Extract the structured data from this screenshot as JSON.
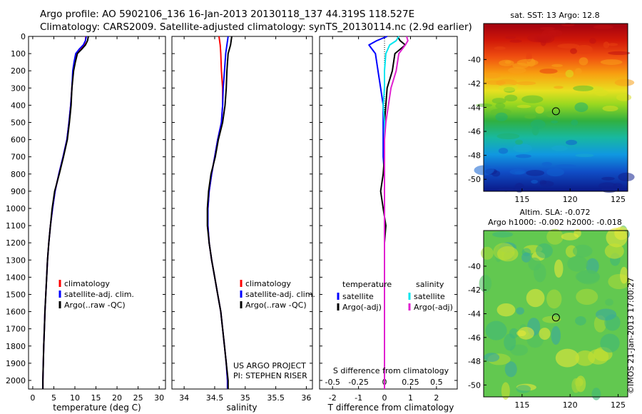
{
  "header": {
    "line1": "Argo profile: AO 5902106_136 16-Jan-2013 20130118_137 44.319S 118.527E",
    "line2": "Climatology: CARS2009. Satellite-adjusted climatology: synTS_20130114.nc (2.9d earlier)"
  },
  "map_panels": {
    "sst_title": "sat. SST: 13 Argo: 12.8",
    "sla_title_line1": "Altim. SLA: -0.072",
    "sla_title_line2": "Argo h1000: -0.002 h2000: -0.018",
    "lat_ticks": [
      "-40",
      "-42",
      "-44",
      "-46",
      "-48",
      "-50"
    ],
    "lon_ticks": [
      "115",
      "120",
      "125"
    ],
    "lat_range": [
      -51,
      -37
    ],
    "lon_range": [
      111,
      126
    ],
    "float_position": {
      "lon": 118.527,
      "lat": -44.319
    }
  },
  "stamp": "©IMOS 21-Jan-2013 17:00:27",
  "credit": {
    "line1": "US ARGO PROJECT",
    "line2": "PI: STEPHEN RISER"
  },
  "colors": {
    "climatology": "#ff0000",
    "satellite": "#0000ff",
    "argo": "#000000",
    "satellite_salinity": "#00e5ee",
    "argo_salinity": "#e020d0"
  },
  "chart_data": [
    {
      "type": "line",
      "name": "temperature",
      "xlabel": "temperature (deg C)",
      "ylim": [
        2050,
        0
      ],
      "xlim": [
        -1,
        31.5
      ],
      "xticks": [
        0,
        5,
        10,
        15,
        20,
        25,
        30
      ],
      "yticks": [
        0,
        100,
        200,
        300,
        400,
        500,
        600,
        700,
        800,
        900,
        1000,
        1100,
        1200,
        1300,
        1400,
        1500,
        1600,
        1700,
        1800,
        1900,
        2000
      ],
      "legend": [
        "climatology",
        "satellite-adj. clim.",
        "Argo(..raw -QC)"
      ],
      "legend_position": "bottom-right",
      "depth": [
        0,
        25,
        50,
        75,
        100,
        150,
        200,
        300,
        400,
        500,
        600,
        700,
        800,
        900,
        1000,
        1100,
        1200,
        1300,
        1400,
        1500,
        1600,
        1700,
        1800,
        1900,
        2000,
        2050
      ],
      "series": [
        {
          "name": "climatology",
          "color": "#ff0000",
          "values": [
            12.6,
            12.5,
            12.2,
            11.1,
            10.3,
            9.9,
            9.6,
            9.3,
            9.0,
            8.6,
            8.1,
            7.2,
            6.2,
            5.3,
            4.7,
            4.2,
            3.8,
            3.5,
            3.3,
            3.1,
            2.9,
            2.75,
            2.6,
            2.5,
            2.4,
            2.4
          ]
        },
        {
          "name": "satellite-adj. clim.",
          "color": "#0000ff",
          "values": [
            12.7,
            12.5,
            12.0,
            11.0,
            10.2,
            9.8,
            9.5,
            9.3,
            9.0,
            8.6,
            8.1,
            7.2,
            6.2,
            5.3,
            4.7,
            4.2,
            3.8,
            3.5,
            3.3,
            3.1,
            2.9,
            2.75,
            2.6,
            2.5,
            2.4,
            2.4
          ]
        },
        {
          "name": "Argo(..raw -QC)",
          "color": "#000000",
          "values": [
            13.2,
            13.0,
            12.5,
            11.6,
            10.6,
            10.1,
            9.7,
            9.3,
            9.1,
            8.7,
            8.2,
            7.3,
            6.3,
            5.2,
            4.6,
            4.2,
            3.8,
            3.5,
            3.3,
            3.1,
            2.9,
            2.75,
            2.6,
            2.5,
            2.4,
            2.4
          ]
        }
      ]
    },
    {
      "type": "line",
      "name": "salinity",
      "xlabel": "salinity",
      "ylim": [
        2050,
        0
      ],
      "xlim": [
        33.8,
        36.1
      ],
      "xticks": [
        34,
        34.5,
        35,
        35.5,
        36
      ],
      "legend": [
        "climatology",
        "satellite-adj. clim.",
        "Argo(..raw -QC)"
      ],
      "legend_position": "bottom-right",
      "depth": [
        0,
        50,
        100,
        200,
        300,
        400,
        500,
        600,
        700,
        800,
        900,
        1000,
        1100,
        1200,
        1300,
        1400,
        1500,
        1600,
        1700,
        1800,
        1900,
        2000,
        2050
      ],
      "series": [
        {
          "name": "climatology",
          "color": "#ff0000",
          "values": [
            34.57,
            34.59,
            34.6,
            34.61,
            34.63,
            34.63,
            34.61,
            34.55,
            34.5,
            34.45,
            34.41,
            34.39,
            34.39,
            34.41,
            34.45,
            34.5,
            34.55,
            34.6,
            34.63,
            34.66,
            34.69,
            34.71,
            34.71
          ]
        },
        {
          "name": "satellite-adj. clim.",
          "color": "#0000ff",
          "values": [
            34.72,
            34.7,
            34.68,
            34.66,
            34.64,
            34.63,
            34.61,
            34.55,
            34.5,
            34.45,
            34.41,
            34.39,
            34.39,
            34.41,
            34.45,
            34.5,
            34.55,
            34.6,
            34.63,
            34.66,
            34.69,
            34.71,
            34.71
          ]
        },
        {
          "name": "Argo(..raw -QC)",
          "color": "#000000",
          "values": [
            34.78,
            34.76,
            34.72,
            34.7,
            34.69,
            34.67,
            34.63,
            34.56,
            34.51,
            34.44,
            34.4,
            34.38,
            34.38,
            34.41,
            34.45,
            34.5,
            34.55,
            34.6,
            34.63,
            34.66,
            34.69,
            34.72,
            34.72
          ]
        }
      ]
    },
    {
      "type": "line",
      "name": "difference",
      "xlabel": "T difference from climatology",
      "top_label": "S difference from climatology",
      "ylim": [
        2050,
        0
      ],
      "xlim": [
        -2.5,
        2.8
      ],
      "xticks": [
        -2,
        -1,
        0,
        1,
        2
      ],
      "secondary_xticks": [
        "-0.5",
        "-0.25",
        "0",
        "0.25",
        "0.5"
      ],
      "secondary_xticks_at": [
        -2,
        -1,
        0,
        1,
        2
      ],
      "legend_temperature_title": "temperature",
      "legend_salinity_title": "salinity",
      "legend": [
        "satellite",
        "Argo(-adj)",
        "satellite",
        "Argo(-adj)"
      ],
      "legend_position": "bottom-center",
      "depth": [
        0,
        25,
        50,
        100,
        200,
        300,
        400,
        500,
        600,
        700,
        800,
        900,
        1000,
        1100,
        1200,
        1300,
        1500,
        1700,
        2000,
        2050
      ],
      "series": [
        {
          "name": "satellite",
          "group": "temperature",
          "color": "#0000ff",
          "values": [
            0.1,
            -0.3,
            -0.6,
            -0.35,
            -0.25,
            -0.15,
            -0.05,
            -0.05,
            -0.05,
            -0.05,
            0.0,
            0.0,
            0.0,
            0.0,
            0.0,
            0.0,
            0.0,
            0.0,
            0.0,
            0.0
          ]
        },
        {
          "name": "Argo(-adj)",
          "group": "temperature",
          "color": "#000000",
          "values": [
            0.5,
            0.6,
            0.8,
            0.4,
            0.3,
            0.1,
            0.05,
            0.0,
            0.0,
            0.0,
            -0.05,
            -0.15,
            -0.05,
            0.05,
            0.0,
            0.0,
            0.0,
            0.0,
            0.0,
            0.0
          ]
        },
        {
          "name": "satellite",
          "group": "salinity",
          "color": "#00e5ee",
          "values": [
            0.55,
            0.45,
            0.2,
            0.05,
            0.0,
            0.0,
            -0.05,
            0.0,
            0.0,
            0.0,
            0.0,
            0.0,
            0.0,
            0.0,
            0.0,
            0.0,
            0.0,
            0.0,
            0.0,
            0.0
          ]
        },
        {
          "name": "Argo(-adj)",
          "group": "salinity",
          "color": "#e020d0",
          "values": [
            0.85,
            0.9,
            0.8,
            0.55,
            0.45,
            0.25,
            0.15,
            0.05,
            0.0,
            0.0,
            0.0,
            0.0,
            0.0,
            0.0,
            0.0,
            0.0,
            0.0,
            0.0,
            0.0,
            0.0
          ]
        }
      ]
    }
  ]
}
